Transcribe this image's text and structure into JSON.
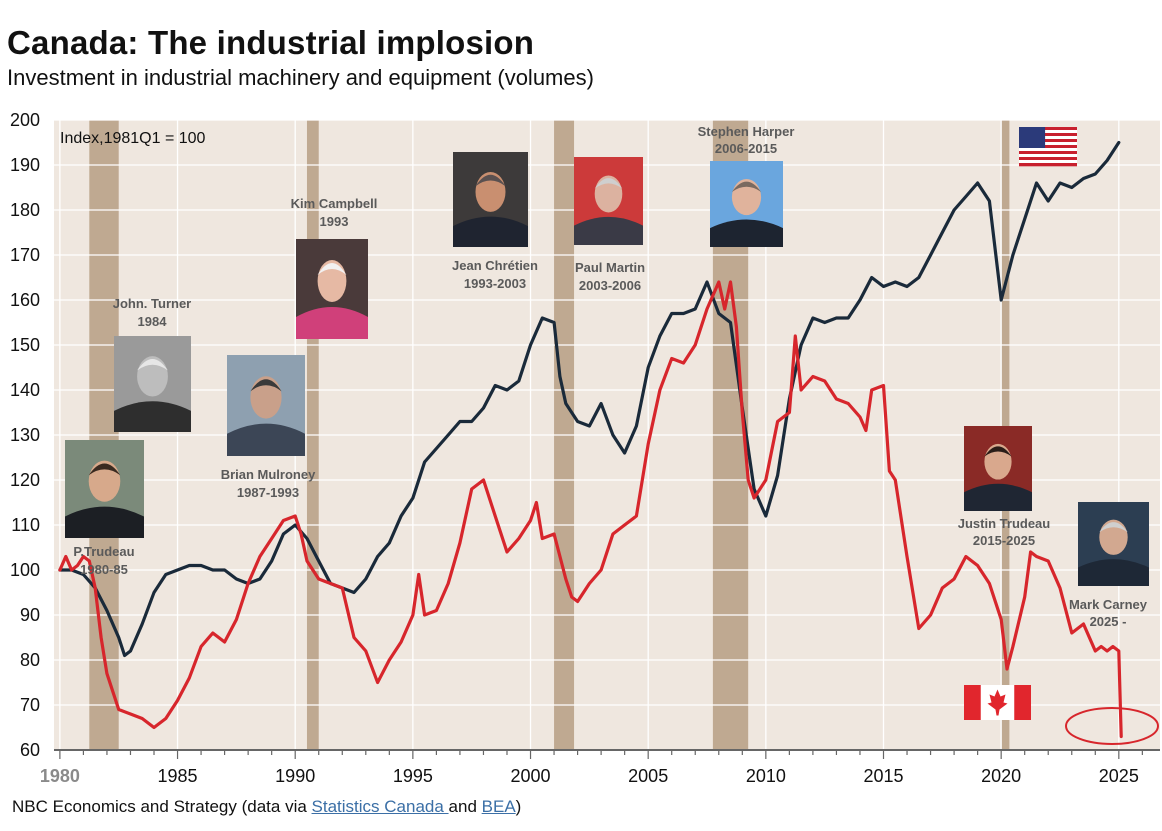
{
  "title": "Canada: The industrial implosion",
  "subtitle": "Investment in industrial machinery and equipment (volumes)",
  "footer": {
    "prefix": "NBC Economics and Strategy (data via ",
    "link1": "Statistics Canada ",
    "middle": "and ",
    "link2": "BEA",
    "suffix": ")"
  },
  "colors": {
    "background": "#efe7df",
    "recession": "#bfa991",
    "usa": "#1a2a3a",
    "canada": "#d7262c",
    "grid": "#ffffff"
  },
  "chart_data": {
    "type": "line",
    "title": "Canada: The industrial implosion",
    "unit_label": "Index,1981Q1 = 100",
    "xlim": [
      1979.75,
      2026.75
    ],
    "ylim": [
      60,
      200
    ],
    "yticks": [
      60,
      70,
      80,
      90,
      100,
      110,
      120,
      130,
      140,
      150,
      160,
      170,
      180,
      190,
      200
    ],
    "xticks": [
      {
        "year": 1980,
        "label": "1980"
      },
      {
        "year": 1985,
        "label": "1985"
      },
      {
        "year": 1990,
        "label": "1990"
      },
      {
        "year": 1995,
        "label": "1995"
      },
      {
        "year": 2000,
        "label": "2000"
      },
      {
        "year": 2005,
        "label": "2005"
      },
      {
        "year": 2010,
        "label": "2010"
      },
      {
        "year": 2015,
        "label": "2015"
      },
      {
        "year": 2020,
        "label": "2020"
      },
      {
        "year": 2025,
        "label": "2025"
      }
    ],
    "recessions": [
      [
        1981.25,
        1982.5
      ],
      [
        1990.5,
        1991.0
      ],
      [
        2001.0,
        2001.85
      ],
      [
        2007.75,
        2009.25
      ],
      [
        2020.0,
        2020.35
      ]
    ],
    "series": [
      {
        "name": "United States",
        "color": "#1a2a3a",
        "points": [
          [
            1980.0,
            100
          ],
          [
            1980.5,
            100
          ],
          [
            1981.0,
            99
          ],
          [
            1981.5,
            96
          ],
          [
            1982.0,
            91
          ],
          [
            1982.5,
            85
          ],
          [
            1982.75,
            81
          ],
          [
            1983.0,
            82
          ],
          [
            1983.5,
            88
          ],
          [
            1984.0,
            95
          ],
          [
            1984.5,
            99
          ],
          [
            1985.0,
            100
          ],
          [
            1985.5,
            101
          ],
          [
            1986.0,
            101
          ],
          [
            1986.5,
            100
          ],
          [
            1987.0,
            100
          ],
          [
            1987.5,
            98
          ],
          [
            1988.0,
            97
          ],
          [
            1988.5,
            98
          ],
          [
            1989.0,
            102
          ],
          [
            1989.5,
            108
          ],
          [
            1990.0,
            110
          ],
          [
            1990.5,
            107
          ],
          [
            1991.0,
            102
          ],
          [
            1991.5,
            97
          ],
          [
            1992.0,
            96
          ],
          [
            1992.5,
            95
          ],
          [
            1993.0,
            98
          ],
          [
            1993.5,
            103
          ],
          [
            1994.0,
            106
          ],
          [
            1994.5,
            112
          ],
          [
            1995.0,
            116
          ],
          [
            1995.5,
            124
          ],
          [
            1996.0,
            127
          ],
          [
            1996.5,
            130
          ],
          [
            1997.0,
            133
          ],
          [
            1997.5,
            133
          ],
          [
            1998.0,
            136
          ],
          [
            1998.5,
            141
          ],
          [
            1999.0,
            140
          ],
          [
            1999.5,
            142
          ],
          [
            2000.0,
            150
          ],
          [
            2000.5,
            156
          ],
          [
            2001.0,
            155
          ],
          [
            2001.25,
            143
          ],
          [
            2001.5,
            137
          ],
          [
            2002.0,
            133
          ],
          [
            2002.5,
            132
          ],
          [
            2003.0,
            137
          ],
          [
            2003.5,
            130
          ],
          [
            2004.0,
            126
          ],
          [
            2004.5,
            132
          ],
          [
            2005.0,
            145
          ],
          [
            2005.5,
            152
          ],
          [
            2006.0,
            157
          ],
          [
            2006.5,
            157
          ],
          [
            2007.0,
            158
          ],
          [
            2007.5,
            164
          ],
          [
            2008.0,
            157
          ],
          [
            2008.5,
            155
          ],
          [
            2009.0,
            136
          ],
          [
            2009.5,
            118
          ],
          [
            2010.0,
            112
          ],
          [
            2010.5,
            121
          ],
          [
            2011.0,
            138
          ],
          [
            2011.5,
            150
          ],
          [
            2012.0,
            156
          ],
          [
            2012.5,
            155
          ],
          [
            2013.0,
            156
          ],
          [
            2013.5,
            156
          ],
          [
            2014.0,
            160
          ],
          [
            2014.5,
            165
          ],
          [
            2015.0,
            163
          ],
          [
            2015.5,
            164
          ],
          [
            2016.0,
            163
          ],
          [
            2016.5,
            165
          ],
          [
            2017.0,
            170
          ],
          [
            2017.5,
            175
          ],
          [
            2018.0,
            180
          ],
          [
            2018.5,
            183
          ],
          [
            2019.0,
            186
          ],
          [
            2019.5,
            182
          ],
          [
            2020.0,
            160
          ],
          [
            2020.5,
            170
          ],
          [
            2021.0,
            178
          ],
          [
            2021.5,
            186
          ],
          [
            2022.0,
            182
          ],
          [
            2022.5,
            186
          ],
          [
            2023.0,
            185
          ],
          [
            2023.5,
            187
          ],
          [
            2024.0,
            188
          ],
          [
            2024.5,
            191
          ],
          [
            2025.0,
            195
          ]
        ]
      },
      {
        "name": "Canada",
        "color": "#d7262c",
        "points": [
          [
            1980.0,
            100
          ],
          [
            1980.25,
            103
          ],
          [
            1980.5,
            100
          ],
          [
            1980.75,
            101
          ],
          [
            1981.0,
            103
          ],
          [
            1981.25,
            102
          ],
          [
            1981.5,
            96
          ],
          [
            1981.75,
            85
          ],
          [
            1982.0,
            77
          ],
          [
            1982.5,
            69
          ],
          [
            1983.0,
            68
          ],
          [
            1983.5,
            67
          ],
          [
            1984.0,
            65
          ],
          [
            1984.5,
            67
          ],
          [
            1985.0,
            71
          ],
          [
            1985.5,
            76
          ],
          [
            1986.0,
            83
          ],
          [
            1986.5,
            86
          ],
          [
            1987.0,
            84
          ],
          [
            1987.5,
            89
          ],
          [
            1988.0,
            97
          ],
          [
            1988.5,
            103
          ],
          [
            1989.0,
            107
          ],
          [
            1989.5,
            111
          ],
          [
            1990.0,
            112
          ],
          [
            1990.25,
            108
          ],
          [
            1990.5,
            102
          ],
          [
            1991.0,
            98
          ],
          [
            1991.5,
            97
          ],
          [
            1992.0,
            96
          ],
          [
            1992.5,
            85
          ],
          [
            1993.0,
            82
          ],
          [
            1993.5,
            75
          ],
          [
            1994.0,
            80
          ],
          [
            1994.5,
            84
          ],
          [
            1995.0,
            90
          ],
          [
            1995.25,
            99
          ],
          [
            1995.5,
            90
          ],
          [
            1996.0,
            91
          ],
          [
            1996.5,
            97
          ],
          [
            1997.0,
            106
          ],
          [
            1997.5,
            118
          ],
          [
            1998.0,
            120
          ],
          [
            1998.5,
            112
          ],
          [
            1999.0,
            104
          ],
          [
            1999.5,
            107
          ],
          [
            2000.0,
            111
          ],
          [
            2000.25,
            115
          ],
          [
            2000.5,
            107
          ],
          [
            2001.0,
            108
          ],
          [
            2001.5,
            98
          ],
          [
            2001.75,
            94
          ],
          [
            2002.0,
            93
          ],
          [
            2002.5,
            97
          ],
          [
            2003.0,
            100
          ],
          [
            2003.5,
            108
          ],
          [
            2004.0,
            110
          ],
          [
            2004.5,
            112
          ],
          [
            2005.0,
            128
          ],
          [
            2005.5,
            140
          ],
          [
            2006.0,
            147
          ],
          [
            2006.5,
            146
          ],
          [
            2007.0,
            150
          ],
          [
            2007.5,
            158
          ],
          [
            2008.0,
            164
          ],
          [
            2008.25,
            158
          ],
          [
            2008.5,
            164
          ],
          [
            2008.75,
            154
          ],
          [
            2009.0,
            135
          ],
          [
            2009.25,
            120
          ],
          [
            2009.5,
            116
          ],
          [
            2010.0,
            120
          ],
          [
            2010.5,
            133
          ],
          [
            2011.0,
            135
          ],
          [
            2011.25,
            152
          ],
          [
            2011.5,
            140
          ],
          [
            2012.0,
            143
          ],
          [
            2012.5,
            142
          ],
          [
            2013.0,
            138
          ],
          [
            2013.5,
            137
          ],
          [
            2014.0,
            134
          ],
          [
            2014.25,
            131
          ],
          [
            2014.5,
            140
          ],
          [
            2015.0,
            141
          ],
          [
            2015.25,
            122
          ],
          [
            2015.5,
            120
          ],
          [
            2016.0,
            103
          ],
          [
            2016.5,
            87
          ],
          [
            2017.0,
            90
          ],
          [
            2017.5,
            96
          ],
          [
            2018.0,
            98
          ],
          [
            2018.5,
            103
          ],
          [
            2019.0,
            101
          ],
          [
            2019.5,
            97
          ],
          [
            2020.0,
            89
          ],
          [
            2020.25,
            78
          ],
          [
            2020.5,
            83
          ],
          [
            2021.0,
            94
          ],
          [
            2021.25,
            104
          ],
          [
            2021.5,
            103
          ],
          [
            2022.0,
            102
          ],
          [
            2022.5,
            96
          ],
          [
            2023.0,
            86
          ],
          [
            2023.5,
            88
          ],
          [
            2024.0,
            82
          ],
          [
            2024.25,
            83
          ],
          [
            2024.5,
            82
          ],
          [
            2024.75,
            83
          ],
          [
            2025.0,
            82
          ],
          [
            2025.1,
            63
          ]
        ]
      }
    ],
    "annotations": [
      {
        "name": "trudeau-sr",
        "line1": "P.Trudeau",
        "line2": "1980-85"
      },
      {
        "name": "turner",
        "line1": "John. Turner",
        "line2": "1984"
      },
      {
        "name": "mulroney",
        "line1": "Brian Mulroney",
        "line2": "1987-1993"
      },
      {
        "name": "campbell",
        "line1": "Kim Campbell",
        "line2": "1993"
      },
      {
        "name": "chretien",
        "line1": "Jean Chrétien",
        "line2": "1993-2003"
      },
      {
        "name": "martin",
        "line1": "Paul Martin",
        "line2": "2003-2006"
      },
      {
        "name": "harper",
        "line1": "Stephen Harper",
        "line2": "2006-2015"
      },
      {
        "name": "trudeau-jr",
        "line1": "Justin Trudeau",
        "line2": "2015-2025"
      },
      {
        "name": "carney",
        "line1": "Mark Carney",
        "line2": "2025 -"
      }
    ]
  }
}
